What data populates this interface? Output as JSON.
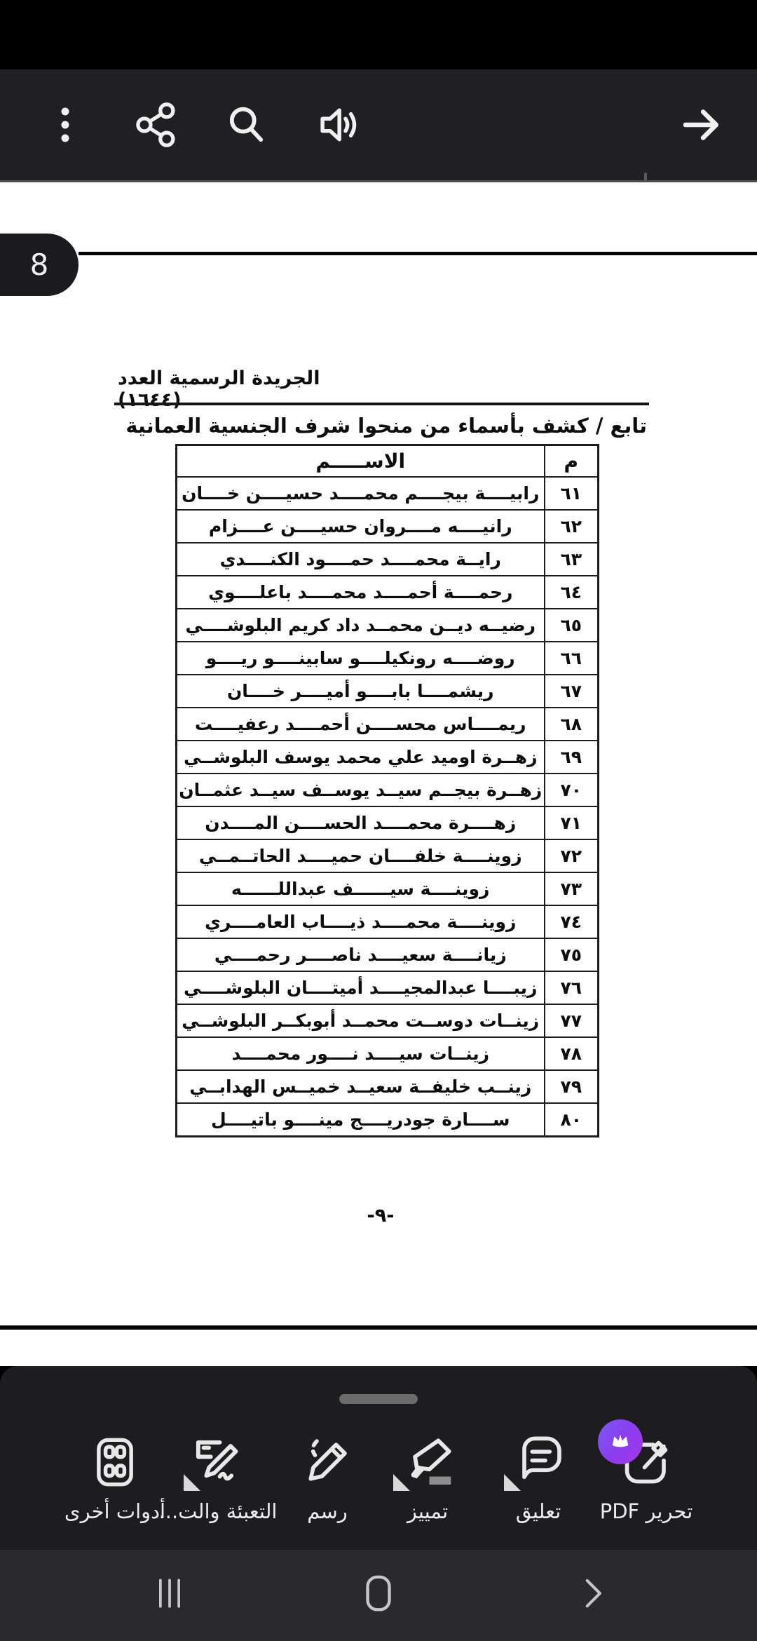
{
  "top_bar": {
    "icons": [
      {
        "id": "more-options-icon",
        "label": "more options"
      },
      {
        "id": "share-icon",
        "label": "share"
      },
      {
        "id": "search-icon",
        "label": "search"
      },
      {
        "id": "read-aloud-icon",
        "label": "read aloud"
      },
      {
        "id": "forward-arrow-icon",
        "label": "forward"
      }
    ]
  },
  "page_tab": {
    "number": "8"
  },
  "document": {
    "header": "الجريدة الرسمية العدد (١٦٤٤)",
    "title": "تابع / كشف بأسماء من منحوا شرف الجنسية العمانية",
    "table": {
      "name_header": "الاســـــم",
      "num_header": "م",
      "rows": [
        {
          "num": "٦١",
          "name": "رابيــــة بيجــــم محمــــد حسيــــن خــــان"
        },
        {
          "num": "٦٢",
          "name": "رانيــــه مــــروان حسيــــن عــــزام"
        },
        {
          "num": "٦٣",
          "name": "رايــة محمــــد حمــــود الكنــــدي"
        },
        {
          "num": "٦٤",
          "name": "رحمــــة أحمــــد محمــــد باعلــــوي"
        },
        {
          "num": "٦٥",
          "name": "رضيــه ديــن محمــد داد كريم البلوشــــي"
        },
        {
          "num": "٦٦",
          "name": "روضــــه رونكيلــــو سابينــــو ريــــو"
        },
        {
          "num": "٦٧",
          "name": "ريشمــــا بابــــو أميــــر خــــان"
        },
        {
          "num": "٦٨",
          "name": "ريمــــاس محســــن أحمــــد رعفيــــت"
        },
        {
          "num": "٦٩",
          "name": "زهــرة اوميد علي محمد يوسف البلوشــي"
        },
        {
          "num": "٧٠",
          "name": "زهــرة بيجــم سيــد يوســف سيــد عثمــان"
        },
        {
          "num": "٧١",
          "name": "زهــــرة محمــــد الحســــن المــــدن"
        },
        {
          "num": "٧٢",
          "name": "زوينــــة خلفــــان حميــــد الحاتــمــي"
        },
        {
          "num": "٧٣",
          "name": "زوينــــة سيــــــف عبداللــــــه"
        },
        {
          "num": "٧٤",
          "name": "زوينــــة محمــــد ذيــــاب العامــــري"
        },
        {
          "num": "٧٥",
          "name": "زيانــــة سعيــــد ناصــــر رحمــــي"
        },
        {
          "num": "٧٦",
          "name": "زيبــــا عبدالمجيــــد أميتــــان البلوشــــي"
        },
        {
          "num": "٧٧",
          "name": "زينــات دوســت محمــد أبوبكــر البلوشــي"
        },
        {
          "num": "٧٨",
          "name": "زينــات سيــــد نــــور محمــــد"
        },
        {
          "num": "٧٩",
          "name": "زينــب خليفــة سعيــد خميــس الهدابــي"
        },
        {
          "num": "٨٠",
          "name": "ســــارة جودريــــج مينــــو باتيــــل"
        }
      ]
    },
    "page_number": "-٩-"
  },
  "toolbar": {
    "buttons": [
      {
        "id": "more-tools",
        "label": "أدوات أخرى"
      },
      {
        "id": "fill-sign",
        "label": "التعبئة والت..."
      },
      {
        "id": "draw",
        "label": "رسم"
      },
      {
        "id": "highlight",
        "label": "تمييز"
      },
      {
        "id": "comment",
        "label": "تعليق"
      },
      {
        "id": "edit-pdf",
        "label": "تحرير PDF",
        "premium": true
      }
    ]
  },
  "nav_bar": {
    "icons": [
      "recents",
      "home",
      "back"
    ]
  },
  "colors": {
    "premium_accent": "#8a3ef0",
    "topbar_bg": "#202022",
    "sheet_bg": "#1d1d1f",
    "navbar_bg": "#2a2a2c",
    "page_bg": "#ffffff",
    "ink": "#0d0d0d"
  }
}
